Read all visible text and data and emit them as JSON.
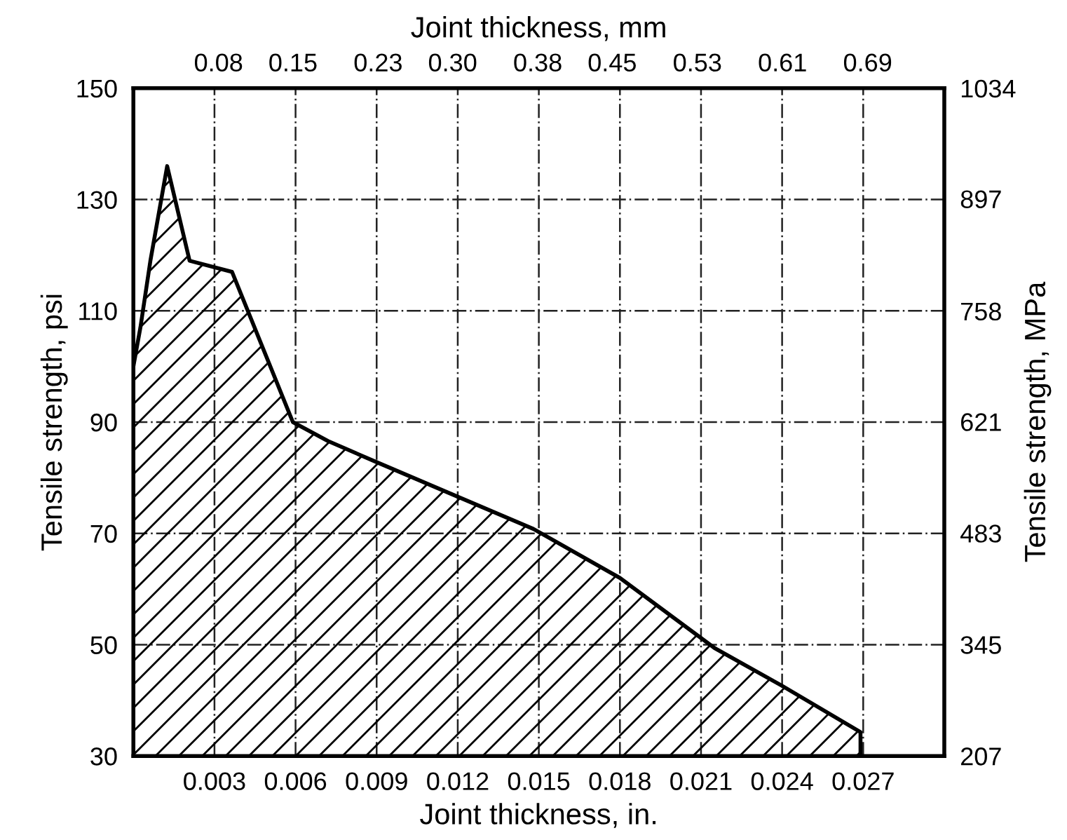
{
  "chart_data": {
    "type": "area",
    "xlabel": "Joint thickness, in.",
    "x2label": "Joint thickness, mm",
    "ylabel": "Tensile strength, psi",
    "y2label": "Tensile strength, MPa",
    "xlim": [
      0,
      0.03
    ],
    "xticks": [
      0.003,
      0.006,
      0.009,
      0.012,
      0.015,
      0.018,
      0.021,
      0.024,
      0.027
    ],
    "x2lim": [
      0,
      0.762
    ],
    "x2ticks": [
      0.08,
      0.15,
      0.23,
      {
        "value": 0.3,
        "label": "0.30"
      },
      0.38,
      0.45,
      0.53,
      0.61,
      0.69
    ],
    "ylim": [
      30,
      150
    ],
    "yticks": [
      30,
      50,
      70,
      90,
      110,
      130,
      150
    ],
    "y2lim": [
      207,
      1034
    ],
    "y2ticks": [
      207,
      345,
      483,
      621,
      758,
      897,
      1034
    ],
    "grid": true,
    "series": [
      {
        "color": "#000000",
        "x": [
          0,
          0.00026,
          0.00063,
          0.00125,
          0.00208,
          0.00365,
          0.0059,
          0.0072,
          0.009,
          0.0118,
          0.0148,
          0.018,
          0.0215,
          0.024,
          0.0269
        ],
        "values": [
          100,
          107,
          119,
          136,
          119,
          117,
          90,
          86.6,
          82.8,
          77,
          70.8,
          62,
          49.4,
          42.6,
          34.3
        ]
      }
    ]
  }
}
